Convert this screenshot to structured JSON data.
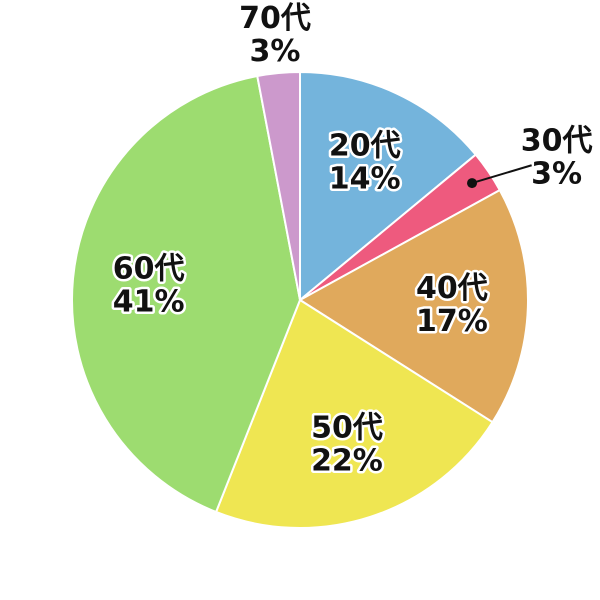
{
  "chart_data": {
    "type": "pie",
    "categories": [
      "20代",
      "30代",
      "40代",
      "50代",
      "60代",
      "70代"
    ],
    "values": [
      14,
      3,
      17,
      22,
      41,
      3
    ],
    "value_labels": [
      "14%",
      "3%",
      "17%",
      "22%",
      "41%",
      "3%"
    ],
    "colors": [
      "#74b4dc",
      "#ee5a7e",
      "#e0a95c",
      "#efe652",
      "#9ddc70",
      "#cc99cc"
    ]
  }
}
